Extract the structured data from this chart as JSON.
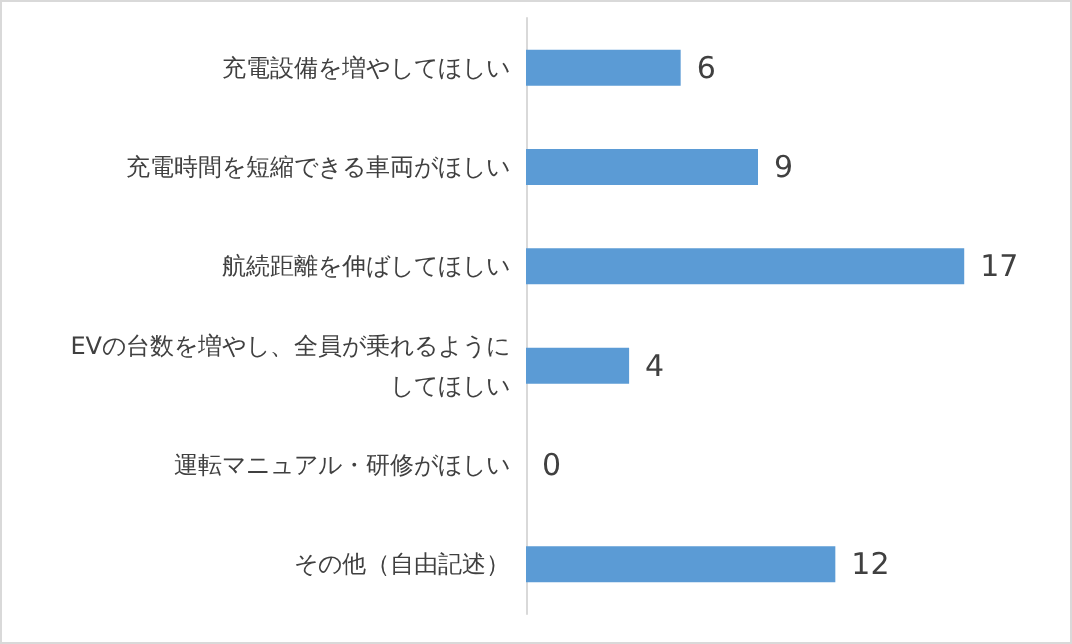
{
  "chart_data": {
    "type": "bar",
    "orientation": "horizontal",
    "categories": [
      "充電設備を増やしてほしい",
      "充電時間を短縮できる車両がほしい",
      "航続距離を伸ばしてほしい",
      "EVの台数を増やし、全員が乗れるようにしてほしい",
      "運転マニュアル・研修がほしい",
      "その他（自由記述）"
    ],
    "values": [
      6,
      9,
      17,
      4,
      0,
      12
    ],
    "color": "#5b9bd5",
    "data_labels": true
  }
}
